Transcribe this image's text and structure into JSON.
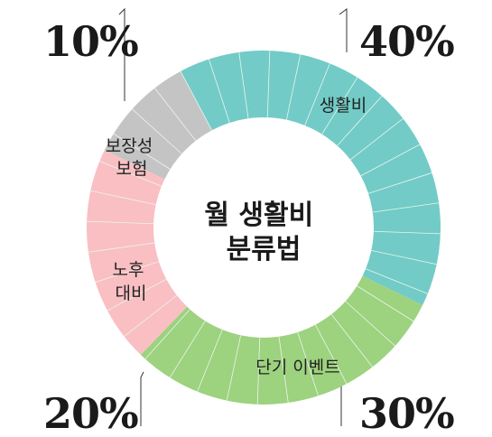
{
  "chart_data": {
    "type": "pie",
    "donut": true,
    "title": [
      "월 생활비",
      "분류법"
    ],
    "categories": [
      "생활비",
      "단기 이벤트",
      "노후 대비",
      "보장성 보험"
    ],
    "slice_labels": [
      [
        "생활비"
      ],
      [
        "단기 이벤트"
      ],
      [
        "노후",
        "대비"
      ],
      [
        "보장성",
        "보험"
      ]
    ],
    "values": [
      40,
      30,
      20,
      10
    ],
    "value_labels": [
      "40%",
      "30%",
      "20%",
      "10%"
    ],
    "colors": [
      "#72cbc6",
      "#9dd27e",
      "#f9bfc2",
      "#c4c4c4"
    ],
    "divider_color": "#e9f6f1",
    "legend": "none"
  }
}
